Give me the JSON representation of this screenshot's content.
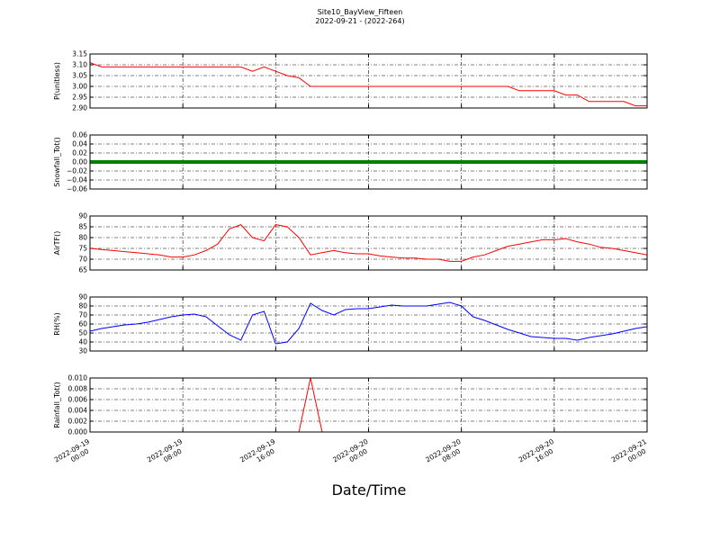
{
  "title": "Site10_BayView_Fifteen",
  "subtitle": "2022-09-21 - (2022-264)",
  "xlabel": "Date/Time",
  "chart_data": [
    {
      "type": "line",
      "ylabel": "P(unitless)",
      "ylim": [
        2.9,
        3.15
      ],
      "yticks": [
        {
          "value": 2.9,
          "label": "2.90"
        },
        2.95,
        {
          "value": 3.0,
          "label": "3.00"
        },
        3.05,
        {
          "value": 3.1,
          "label": "3.10"
        },
        3.15
      ],
      "grid": true,
      "x": [
        "2022-09-19 00:00",
        "2022-09-19 01:00",
        "2022-09-19 02:00",
        "2022-09-19 03:00",
        "2022-09-19 04:00",
        "2022-09-19 05:00",
        "2022-09-19 06:00",
        "2022-09-19 07:00",
        "2022-09-19 08:00",
        "2022-09-19 09:00",
        "2022-09-19 10:00",
        "2022-09-19 11:00",
        "2022-09-19 12:00",
        "2022-09-19 13:00",
        "2022-09-19 14:00",
        "2022-09-19 15:00",
        "2022-09-19 16:00",
        "2022-09-19 17:00",
        "2022-09-19 18:00",
        "2022-09-19 19:00",
        "2022-09-19 20:00",
        "2022-09-19 21:00",
        "2022-09-19 22:00",
        "2022-09-19 23:00",
        "2022-09-20 00:00",
        "2022-09-20 01:00",
        "2022-09-20 02:00",
        "2022-09-20 03:00",
        "2022-09-20 04:00",
        "2022-09-20 05:00",
        "2022-09-20 06:00",
        "2022-09-20 07:00",
        "2022-09-20 08:00",
        "2022-09-20 09:00",
        "2022-09-20 10:00",
        "2022-09-20 11:00",
        "2022-09-20 12:00",
        "2022-09-20 13:00",
        "2022-09-20 14:00",
        "2022-09-20 15:00",
        "2022-09-20 16:00",
        "2022-09-20 17:00",
        "2022-09-20 18:00",
        "2022-09-20 19:00",
        "2022-09-20 20:00",
        "2022-09-20 21:00",
        "2022-09-20 22:00",
        "2022-09-20 23:00",
        "2022-09-21 00:00"
      ],
      "series": [
        {
          "color": "#ff0000",
          "values": [
            3.11,
            3.09,
            3.09,
            3.09,
            3.09,
            3.09,
            3.09,
            3.09,
            3.09,
            3.09,
            3.09,
            3.09,
            3.09,
            3.09,
            3.07,
            3.09,
            3.07,
            3.05,
            3.04,
            3.0,
            3.0,
            3.0,
            3.0,
            3.0,
            3.0,
            3.0,
            3.0,
            3.0,
            3.0,
            3.0,
            3.0,
            3.0,
            3.0,
            3.0,
            3.0,
            3.0,
            3.0,
            2.98,
            2.98,
            2.98,
            2.98,
            2.96,
            2.96,
            2.93,
            2.93,
            2.93,
            2.93,
            2.91,
            2.91
          ]
        }
      ]
    },
    {
      "type": "line",
      "ylabel": "Snowfall_Tot()",
      "ylim": [
        -0.06,
        0.06
      ],
      "yticks": [
        {
          "value": -0.06,
          "label": "−0.06"
        },
        {
          "value": -0.04,
          "label": "−0.04"
        },
        {
          "value": -0.02,
          "label": "−0.02"
        },
        {
          "value": 0,
          "label": "0.00"
        },
        0.02,
        0.04,
        0.06
      ],
      "grid": true,
      "x": [
        "2022-09-19 00:00",
        "2022-09-19 01:00",
        "2022-09-19 02:00",
        "2022-09-19 03:00",
        "2022-09-19 04:00",
        "2022-09-19 05:00",
        "2022-09-19 06:00",
        "2022-09-19 07:00",
        "2022-09-19 08:00",
        "2022-09-19 09:00",
        "2022-09-19 10:00",
        "2022-09-19 11:00",
        "2022-09-19 12:00",
        "2022-09-19 13:00",
        "2022-09-19 14:00",
        "2022-09-19 15:00",
        "2022-09-19 16:00",
        "2022-09-19 17:00",
        "2022-09-19 18:00",
        "2022-09-19 19:00",
        "2022-09-19 20:00",
        "2022-09-19 21:00",
        "2022-09-19 22:00",
        "2022-09-19 23:00",
        "2022-09-20 00:00",
        "2022-09-20 01:00",
        "2022-09-20 02:00",
        "2022-09-20 03:00",
        "2022-09-20 04:00",
        "2022-09-20 05:00",
        "2022-09-20 06:00",
        "2022-09-20 07:00",
        "2022-09-20 08:00",
        "2022-09-20 09:00",
        "2022-09-20 10:00",
        "2022-09-20 11:00",
        "2022-09-20 12:00",
        "2022-09-20 13:00",
        "2022-09-20 14:00",
        "2022-09-20 15:00",
        "2022-09-20 16:00",
        "2022-09-20 17:00",
        "2022-09-20 18:00",
        "2022-09-20 19:00",
        "2022-09-20 20:00",
        "2022-09-20 21:00",
        "2022-09-20 22:00",
        "2022-09-20 23:00",
        "2022-09-21 00:00"
      ],
      "series": [
        {
          "color": "#008000",
          "values": [
            0,
            0,
            0,
            0,
            0,
            0,
            0,
            0,
            0,
            0,
            0,
            0,
            0,
            0,
            0,
            0,
            0,
            0,
            0,
            0,
            0,
            0,
            0,
            0,
            0,
            0,
            0,
            0,
            0,
            0,
            0,
            0,
            0,
            0,
            0,
            0,
            0,
            0,
            0,
            0,
            0,
            0,
            0,
            0,
            0,
            0,
            0,
            0,
            0
          ]
        }
      ]
    },
    {
      "type": "line",
      "ylabel": "AirTF()",
      "ylim": [
        65,
        90
      ],
      "yticks": [
        65,
        70,
        75,
        80,
        85,
        90
      ],
      "grid": true,
      "x": [
        "2022-09-19 00:00",
        "2022-09-19 01:00",
        "2022-09-19 02:00",
        "2022-09-19 03:00",
        "2022-09-19 04:00",
        "2022-09-19 05:00",
        "2022-09-19 06:00",
        "2022-09-19 07:00",
        "2022-09-19 08:00",
        "2022-09-19 09:00",
        "2022-09-19 10:00",
        "2022-09-19 11:00",
        "2022-09-19 12:00",
        "2022-09-19 13:00",
        "2022-09-19 14:00",
        "2022-09-19 15:00",
        "2022-09-19 16:00",
        "2022-09-19 17:00",
        "2022-09-19 18:00",
        "2022-09-19 19:00",
        "2022-09-19 20:00",
        "2022-09-19 21:00",
        "2022-09-19 22:00",
        "2022-09-19 23:00",
        "2022-09-20 00:00",
        "2022-09-20 01:00",
        "2022-09-20 02:00",
        "2022-09-20 03:00",
        "2022-09-20 04:00",
        "2022-09-20 05:00",
        "2022-09-20 06:00",
        "2022-09-20 07:00",
        "2022-09-20 08:00",
        "2022-09-20 09:00",
        "2022-09-20 10:00",
        "2022-09-20 11:00",
        "2022-09-20 12:00",
        "2022-09-20 13:00",
        "2022-09-20 14:00",
        "2022-09-20 15:00",
        "2022-09-20 16:00",
        "2022-09-20 17:00",
        "2022-09-20 18:00",
        "2022-09-20 19:00",
        "2022-09-20 20:00",
        "2022-09-20 21:00",
        "2022-09-20 22:00",
        "2022-09-20 23:00",
        "2022-09-21 00:00"
      ],
      "series": [
        {
          "color": "#ff0000",
          "values": [
            75,
            74.5,
            74,
            73.5,
            73,
            72.5,
            72,
            71,
            71,
            72,
            74,
            77,
            84,
            86,
            80,
            78.5,
            86,
            85,
            80,
            72,
            73,
            74,
            73,
            72.5,
            72.5,
            71.5,
            71,
            70.5,
            70.5,
            70,
            70,
            69,
            69,
            71,
            72,
            74,
            76,
            77,
            78,
            79,
            79,
            79.5,
            78,
            77,
            75.5,
            75,
            74,
            73,
            72
          ]
        }
      ]
    },
    {
      "type": "line",
      "ylabel": "RH(%)",
      "ylim": [
        30,
        90
      ],
      "yticks": [
        30,
        40,
        50,
        60,
        70,
        80,
        90
      ],
      "grid": true,
      "x": [
        "2022-09-19 00:00",
        "2022-09-19 01:00",
        "2022-09-19 02:00",
        "2022-09-19 03:00",
        "2022-09-19 04:00",
        "2022-09-19 05:00",
        "2022-09-19 06:00",
        "2022-09-19 07:00",
        "2022-09-19 08:00",
        "2022-09-19 09:00",
        "2022-09-19 10:00",
        "2022-09-19 11:00",
        "2022-09-19 12:00",
        "2022-09-19 13:00",
        "2022-09-19 14:00",
        "2022-09-19 15:00",
        "2022-09-19 16:00",
        "2022-09-19 17:00",
        "2022-09-19 18:00",
        "2022-09-19 19:00",
        "2022-09-19 20:00",
        "2022-09-19 21:00",
        "2022-09-19 22:00",
        "2022-09-19 23:00",
        "2022-09-20 00:00",
        "2022-09-20 01:00",
        "2022-09-20 02:00",
        "2022-09-20 03:00",
        "2022-09-20 04:00",
        "2022-09-20 05:00",
        "2022-09-20 06:00",
        "2022-09-20 07:00",
        "2022-09-20 08:00",
        "2022-09-20 09:00",
        "2022-09-20 10:00",
        "2022-09-20 11:00",
        "2022-09-20 12:00",
        "2022-09-20 13:00",
        "2022-09-20 14:00",
        "2022-09-20 15:00",
        "2022-09-20 16:00",
        "2022-09-20 17:00",
        "2022-09-20 18:00",
        "2022-09-20 19:00",
        "2022-09-20 20:00",
        "2022-09-20 21:00",
        "2022-09-20 22:00",
        "2022-09-20 23:00",
        "2022-09-21 00:00"
      ],
      "series": [
        {
          "color": "#0000ff",
          "values": [
            52,
            55,
            57,
            59,
            60,
            62,
            65,
            68,
            70,
            71,
            68,
            58,
            48,
            42,
            70,
            74,
            38,
            40,
            55,
            83,
            75,
            70,
            76,
            77,
            77,
            79,
            81,
            80,
            80,
            80,
            82,
            84,
            80,
            68,
            64,
            59,
            54,
            50,
            46,
            45,
            44,
            44,
            42,
            45,
            47,
            49,
            52,
            55,
            57
          ]
        }
      ]
    },
    {
      "type": "line",
      "ylabel": "Rainfall_Tot()",
      "ylim": [
        0,
        0.01
      ],
      "yticks": [
        {
          "value": 0,
          "label": "0.000"
        },
        0.002,
        0.004,
        0.006,
        0.008,
        {
          "value": 0.01,
          "label": "0.010"
        }
      ],
      "grid": true,
      "xlim": [
        "2022-09-19 00:00",
        "2022-09-21 00:00"
      ],
      "xticks": [
        "2022-09-19 00:00",
        "2022-09-19 08:00",
        "2022-09-19 16:00",
        "2022-09-20 00:00",
        "2022-09-20 08:00",
        "2022-09-20 16:00",
        "2022-09-21 00:00"
      ],
      "x": [
        "2022-09-19 00:00",
        "2022-09-19 01:00",
        "2022-09-19 02:00",
        "2022-09-19 03:00",
        "2022-09-19 04:00",
        "2022-09-19 05:00",
        "2022-09-19 06:00",
        "2022-09-19 07:00",
        "2022-09-19 08:00",
        "2022-09-19 09:00",
        "2022-09-19 10:00",
        "2022-09-19 11:00",
        "2022-09-19 12:00",
        "2022-09-19 13:00",
        "2022-09-19 14:00",
        "2022-09-19 15:00",
        "2022-09-19 16:00",
        "2022-09-19 17:00",
        "2022-09-19 18:00",
        "2022-09-19 19:00",
        "2022-09-19 20:00",
        "2022-09-19 21:00",
        "2022-09-19 22:00",
        "2022-09-19 23:00",
        "2022-09-20 00:00",
        "2022-09-20 01:00",
        "2022-09-20 02:00",
        "2022-09-20 03:00",
        "2022-09-20 04:00",
        "2022-09-20 05:00",
        "2022-09-20 06:00",
        "2022-09-20 07:00",
        "2022-09-20 08:00",
        "2022-09-20 09:00",
        "2022-09-20 10:00",
        "2022-09-20 11:00",
        "2022-09-20 12:00",
        "2022-09-20 13:00",
        "2022-09-20 14:00",
        "2022-09-20 15:00",
        "2022-09-20 16:00",
        "2022-09-20 17:00",
        "2022-09-20 18:00",
        "2022-09-20 19:00",
        "2022-09-20 20:00",
        "2022-09-20 21:00",
        "2022-09-20 22:00",
        "2022-09-20 23:00",
        "2022-09-21 00:00"
      ],
      "series": [
        {
          "color": "#ff0000",
          "values": [
            0,
            0,
            0,
            0,
            0,
            0,
            0,
            0,
            0,
            0,
            0,
            0,
            0,
            0,
            0,
            0,
            0,
            0,
            0,
            0.01,
            0,
            0,
            0,
            0,
            0,
            0,
            0,
            0,
            0,
            0,
            0,
            0,
            0,
            0,
            0,
            0,
            0,
            0,
            0,
            0,
            0,
            0,
            0,
            0,
            0,
            0,
            0,
            0,
            0
          ]
        }
      ]
    }
  ]
}
